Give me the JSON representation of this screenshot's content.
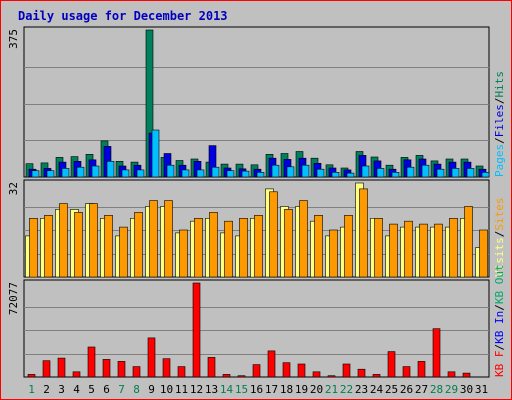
{
  "title": "Daily usage for December 2013",
  "colors": {
    "background": "#c0c0c0",
    "frame": "#ff0000",
    "title": "#0000c0",
    "grid": "#808080",
    "weekday_label": "#000000",
    "weekend_label": "#00804c",
    "pages": "#00805c",
    "files": "#0000e0",
    "hits": "#00c0ff",
    "visits": "#ffff80",
    "sites": "#ff9900",
    "kbf": "#ff0000",
    "kbin": "#0000ff",
    "kbout": "#00aa6a"
  },
  "chart_data": {
    "type": "bar",
    "title": "Daily usage for December 2013",
    "categories": [
      "1",
      "2",
      "3",
      "4",
      "5",
      "6",
      "7",
      "8",
      "9",
      "10",
      "11",
      "12",
      "13",
      "14",
      "15",
      "16",
      "17",
      "18",
      "19",
      "20",
      "21",
      "22",
      "23",
      "24",
      "25",
      "26",
      "27",
      "28",
      "29",
      "30",
      "31"
    ],
    "weekend_days": [
      1,
      7,
      8,
      14,
      15,
      21,
      22,
      28,
      29
    ],
    "panels": [
      {
        "id": "hits",
        "axis_max_label": "375",
        "ymax": 375,
        "legend": [
          {
            "text": "Pages",
            "color": "#00c0ff"
          },
          {
            "text": "/",
            "color": "#000000"
          },
          {
            "text": "Files",
            "color": "#0000e0"
          },
          {
            "text": "/",
            "color": "#000000"
          },
          {
            "text": "Hits",
            "color": "#00805c"
          }
        ],
        "series": [
          {
            "name": "Hits",
            "color": "#00805c",
            "values": [
              34,
              36,
              50,
              52,
              58,
              92,
              40,
              38,
              375,
              50,
              42,
              46,
              38,
              33,
              33,
              31,
              58,
              60,
              65,
              48,
              31,
              23,
              65,
              51,
              30,
              50,
              55,
              41,
              46,
              46,
              28
            ]
          },
          {
            "name": "Files",
            "color": "#0000e0",
            "values": [
              20,
              22,
              38,
              40,
              44,
              78,
              28,
              30,
              112,
              60,
              30,
              40,
              80,
              23,
              21,
              20,
              48,
              45,
              48,
              35,
              23,
              18,
              55,
              41,
              20,
              44,
              46,
              33,
              38,
              38,
              20
            ]
          },
          {
            "name": "Pages",
            "color": "#00c0ff",
            "values": [
              16,
              16,
              22,
              25,
              28,
              40,
              18,
              18,
              120,
              30,
              18,
              18,
              25,
              16,
              15,
              12,
              30,
              26,
              30,
              20,
              12,
              10,
              28,
              22,
              12,
              25,
              30,
              20,
              22,
              22,
              12
            ]
          }
        ]
      },
      {
        "id": "visits",
        "axis_max_label": "32",
        "ymax": 32,
        "legend": [
          {
            "text": "Visits",
            "color": "#ffff80"
          },
          {
            "text": "/",
            "color": "#000000"
          },
          {
            "text": "Sites",
            "color": "#ff9900"
          }
        ],
        "series": [
          {
            "name": "Visits",
            "color": "#ffff80",
            "values": [
              14,
              20,
              23,
              23,
              25,
              20,
              14,
              20,
              24,
              24,
              15,
              19,
              20,
              15,
              14,
              20,
              30,
              24,
              24,
              19,
              14,
              17,
              32,
              20,
              14,
              17,
              17,
              17,
              17,
              20,
              10
            ]
          },
          {
            "name": "Sites",
            "color": "#ff9900",
            "values": [
              20,
              21,
              25,
              22,
              25,
              21,
              17,
              22,
              26,
              26,
              16,
              20,
              22,
              19,
              20,
              21,
              29,
              23,
              26,
              21,
              16,
              21,
              30,
              20,
              18,
              19,
              18,
              18,
              20,
              24,
              16
            ]
          }
        ]
      },
      {
        "id": "kbytes",
        "axis_max_label": "72077",
        "ymax": 72077,
        "legend": [
          {
            "text": "KB F",
            "color": "#ff0000"
          },
          {
            "text": "/",
            "color": "#000000"
          },
          {
            "text": "KB In",
            "color": "#0000ff"
          },
          {
            "text": "/",
            "color": "#000000"
          },
          {
            "text": "KB Out",
            "color": "#00aa6a"
          }
        ],
        "series": [
          {
            "name": "KB F",
            "color": "#ff0000",
            "values": [
              2000,
              12500,
              14500,
              4000,
              23000,
              13500,
              12000,
              8000,
              30000,
              14000,
              8000,
              72077,
              15000,
              2000,
              1000,
              9500,
              20000,
              11000,
              10000,
              4000,
              1000,
              10000,
              6000,
              2000,
              19500,
              8000,
              12000,
              37000,
              4000,
              3000,
              0
            ]
          }
        ]
      }
    ]
  }
}
